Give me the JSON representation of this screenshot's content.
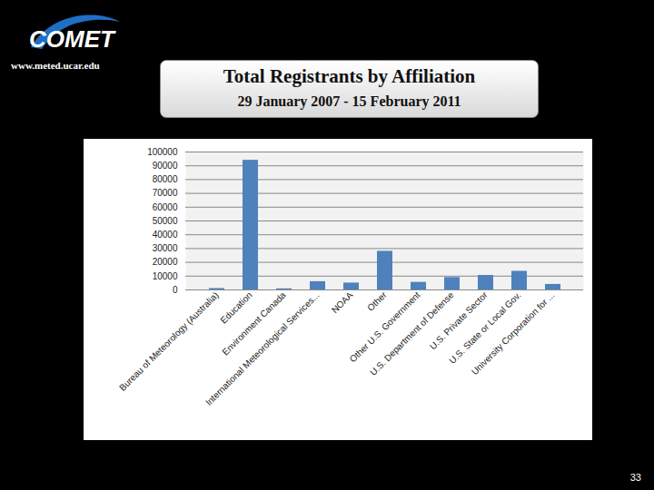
{
  "chart_data": {
    "type": "bar",
    "title": "Total Registrants by Affiliation",
    "subtitle": "29 January 2007 - 15 February 2011",
    "categories": [
      "Bureau of Meteorology (Australia)",
      "Education",
      "Environment Canada",
      "International Meteorological Services...",
      "NOAA",
      "Other",
      "Other U.S. Government",
      "U.S. Department of Defense",
      "U.S. Private Sector",
      "U.S. State or Local Gov.",
      "University Corporation for ..."
    ],
    "values": [
      1000,
      94000,
      800,
      6000,
      5000,
      28000,
      5500,
      9000,
      10500,
      13500,
      4000
    ],
    "color": "#4f81bd",
    "ylim": [
      0,
      100000
    ],
    "yticks": [
      0,
      10000,
      20000,
      30000,
      40000,
      50000,
      60000,
      70000,
      80000,
      90000,
      100000
    ],
    "grid": true
  },
  "slide": {
    "logo": "COMET",
    "url": "www.meted.ucar.edu",
    "page": 33
  }
}
